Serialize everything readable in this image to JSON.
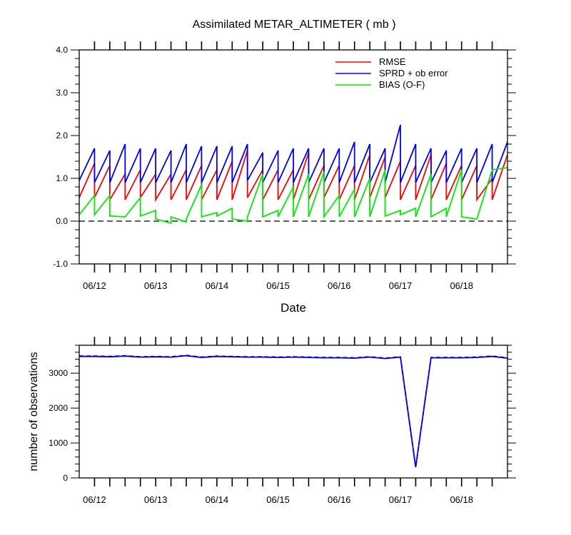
{
  "chart_data": [
    {
      "type": "line",
      "title": "Assimilated METAR_ALTIMETER ( mb )",
      "xlabel": "Date",
      "ylabel": "",
      "xlim": [
        0,
        7.0
      ],
      "ylim": [
        -1.0,
        4.0
      ],
      "yticks": [
        "-1.0",
        "0.0",
        "1.0",
        "2.0",
        "3.0",
        "4.0"
      ],
      "ytick_values": [
        -1,
        0,
        1,
        2,
        3,
        4
      ],
      "xticks": [
        "06/12",
        "06/13",
        "06/14",
        "06/15",
        "06/16",
        "06/17",
        "06/18"
      ],
      "xtick_values": [
        0.25,
        1.25,
        2.25,
        3.25,
        4.25,
        5.25,
        6.25
      ],
      "reference_line": 0.0,
      "legend": {
        "placement": "top-right"
      },
      "series": [
        {
          "name": "RMSE",
          "color": "#ff0000",
          "x": [
            0,
            0.25,
            0.25,
            0.5,
            0.5,
            0.75,
            0.75,
            1,
            1,
            1.25,
            1.25,
            1.5,
            1.5,
            1.75,
            1.75,
            2,
            2,
            2.25,
            2.25,
            2.5,
            2.5,
            2.75,
            2.75,
            3,
            3,
            3.25,
            3.25,
            3.5,
            3.5,
            3.75,
            3.75,
            4,
            4,
            4.25,
            4.25,
            4.5,
            4.5,
            4.75,
            4.75,
            5,
            5,
            5.25,
            5.25,
            5.5,
            5.5,
            5.75,
            5.75,
            6,
            6,
            6.25,
            6.25,
            6.5,
            6.5,
            6.75,
            6.75,
            7
          ],
          "y": [
            0.55,
            1.35,
            0.55,
            1.3,
            0.5,
            1.1,
            0.5,
            1.2,
            0.55,
            1.1,
            0.5,
            1.1,
            0.5,
            1.2,
            0.5,
            1.3,
            0.5,
            1.2,
            0.5,
            1.4,
            0.5,
            1.65,
            0.55,
            1.2,
            0.5,
            1.2,
            0.5,
            1.2,
            0.5,
            1.6,
            0.5,
            1.3,
            0.55,
            1.3,
            0.5,
            1.3,
            0.5,
            1.55,
            0.55,
            1.5,
            0.55,
            1.4,
            0.5,
            1.3,
            0.5,
            1.55,
            0.5,
            1.35,
            0.5,
            1.3,
            0.5,
            1.3,
            0.5,
            1.0,
            0.5,
            1.55
          ]
        },
        {
          "name": "SPRD + ob error",
          "color": "#0000ff",
          "x": [
            0,
            0.25,
            0.25,
            0.5,
            0.5,
            0.75,
            0.75,
            1,
            1,
            1.25,
            1.25,
            1.5,
            1.5,
            1.75,
            1.75,
            2,
            2,
            2.25,
            2.25,
            2.5,
            2.5,
            2.75,
            2.75,
            3,
            3,
            3.25,
            3.25,
            3.5,
            3.5,
            3.75,
            3.75,
            4,
            4,
            4.25,
            4.25,
            4.5,
            4.5,
            4.75,
            4.75,
            5,
            5,
            5.25,
            5.25,
            5.5,
            5.5,
            5.75,
            5.75,
            6,
            6,
            6.25,
            6.25,
            6.5,
            6.5,
            6.75,
            6.75,
            7
          ],
          "y": [
            0.95,
            1.7,
            0.9,
            1.65,
            0.9,
            1.8,
            0.9,
            1.7,
            0.9,
            1.7,
            0.9,
            1.65,
            0.9,
            1.8,
            0.9,
            1.75,
            0.9,
            1.75,
            0.9,
            1.75,
            0.9,
            1.8,
            0.95,
            1.6,
            0.9,
            1.65,
            0.9,
            1.7,
            0.9,
            1.7,
            0.9,
            1.7,
            0.9,
            1.7,
            0.9,
            1.85,
            0.9,
            1.8,
            0.9,
            1.7,
            0.9,
            2.25,
            0.9,
            1.8,
            0.9,
            1.7,
            0.9,
            1.65,
            0.9,
            1.7,
            0.9,
            1.7,
            0.9,
            1.8,
            0.9,
            1.85
          ]
        },
        {
          "name": "BIAS (O-F)",
          "color": "#00ee00",
          "x": [
            0,
            0.25,
            0.25,
            0.5,
            0.5,
            0.75,
            0.75,
            1,
            1,
            1.25,
            1.25,
            1.5,
            1.5,
            1.75,
            1.75,
            2,
            2,
            2.25,
            2.25,
            2.5,
            2.5,
            2.75,
            2.75,
            3,
            3,
            3.25,
            3.25,
            3.5,
            3.5,
            3.75,
            3.75,
            4,
            4,
            4.25,
            4.25,
            4.5,
            4.5,
            4.75,
            4.75,
            5,
            5,
            5.25,
            5.25,
            5.5,
            5.5,
            5.75,
            5.75,
            6,
            6,
            6.25,
            6.25,
            6.5,
            6.5,
            6.75,
            6.75,
            7
          ],
          "y": [
            0.15,
            0.6,
            0.15,
            0.6,
            0.12,
            0.1,
            0.1,
            0.55,
            0.12,
            0.25,
            0.05,
            -0.05,
            0.1,
            -0.02,
            0.05,
            0.85,
            0.1,
            0.2,
            0.12,
            0.3,
            0.05,
            0.0,
            0.1,
            1.1,
            0.1,
            0.25,
            0.1,
            0.8,
            0.1,
            1.1,
            0.1,
            1.15,
            0.1,
            0.6,
            0.1,
            0.75,
            0.1,
            1.0,
            0.1,
            1.2,
            0.12,
            0.25,
            0.15,
            0.3,
            0.1,
            1.1,
            0.1,
            0.3,
            0.1,
            1.2,
            0.1,
            0.05,
            0.05,
            1.2,
            1.2,
            1.25
          ]
        }
      ]
    },
    {
      "type": "line",
      "title": "",
      "xlabel": "",
      "ylabel": "number of observations",
      "xlim": [
        0,
        7.0
      ],
      "ylim": [
        0,
        3800
      ],
      "yticks": [
        "0",
        "1000",
        "2000",
        "3000"
      ],
      "ytick_values": [
        0,
        1000,
        2000,
        3000
      ],
      "xticks": [
        "06/12",
        "06/13",
        "06/14",
        "06/15",
        "06/16",
        "06/17",
        "06/18"
      ],
      "xtick_values": [
        0.25,
        1.25,
        2.25,
        3.25,
        4.25,
        5.25,
        6.25
      ],
      "series": [
        {
          "name": "",
          "color": "#000000",
          "dash": "dashed",
          "x": [
            0,
            0.25,
            0.5,
            0.75,
            1,
            1.25,
            1.5,
            1.75,
            2,
            2.25,
            2.5,
            2.75,
            3,
            3.25,
            3.5,
            3.75,
            4,
            4.25,
            4.5,
            4.75,
            5,
            5.25,
            5.5,
            5.75,
            6,
            6.25,
            6.5,
            6.75,
            7
          ],
          "y": [
            3490,
            3490,
            3480,
            3500,
            3470,
            3480,
            3470,
            3510,
            3460,
            3490,
            3480,
            3470,
            3470,
            3460,
            3470,
            3460,
            3450,
            3450,
            3440,
            3470,
            3430,
            3470,
            300,
            3450,
            3450,
            3450,
            3460,
            3490,
            3440
          ]
        },
        {
          "name": "",
          "color": "#0000ff",
          "x": [
            0,
            0.25,
            0.5,
            0.75,
            1,
            1.25,
            1.5,
            1.75,
            2,
            2.25,
            2.5,
            2.75,
            3,
            3.25,
            3.5,
            3.75,
            4,
            4.25,
            4.5,
            4.75,
            5,
            5.25,
            5.5,
            5.75,
            6,
            6.25,
            6.5,
            6.75,
            7
          ],
          "y": [
            3480,
            3480,
            3470,
            3490,
            3460,
            3470,
            3460,
            3500,
            3450,
            3480,
            3470,
            3460,
            3460,
            3450,
            3460,
            3450,
            3440,
            3440,
            3430,
            3460,
            3420,
            3460,
            310,
            3440,
            3440,
            3440,
            3450,
            3480,
            3430
          ]
        }
      ]
    }
  ]
}
